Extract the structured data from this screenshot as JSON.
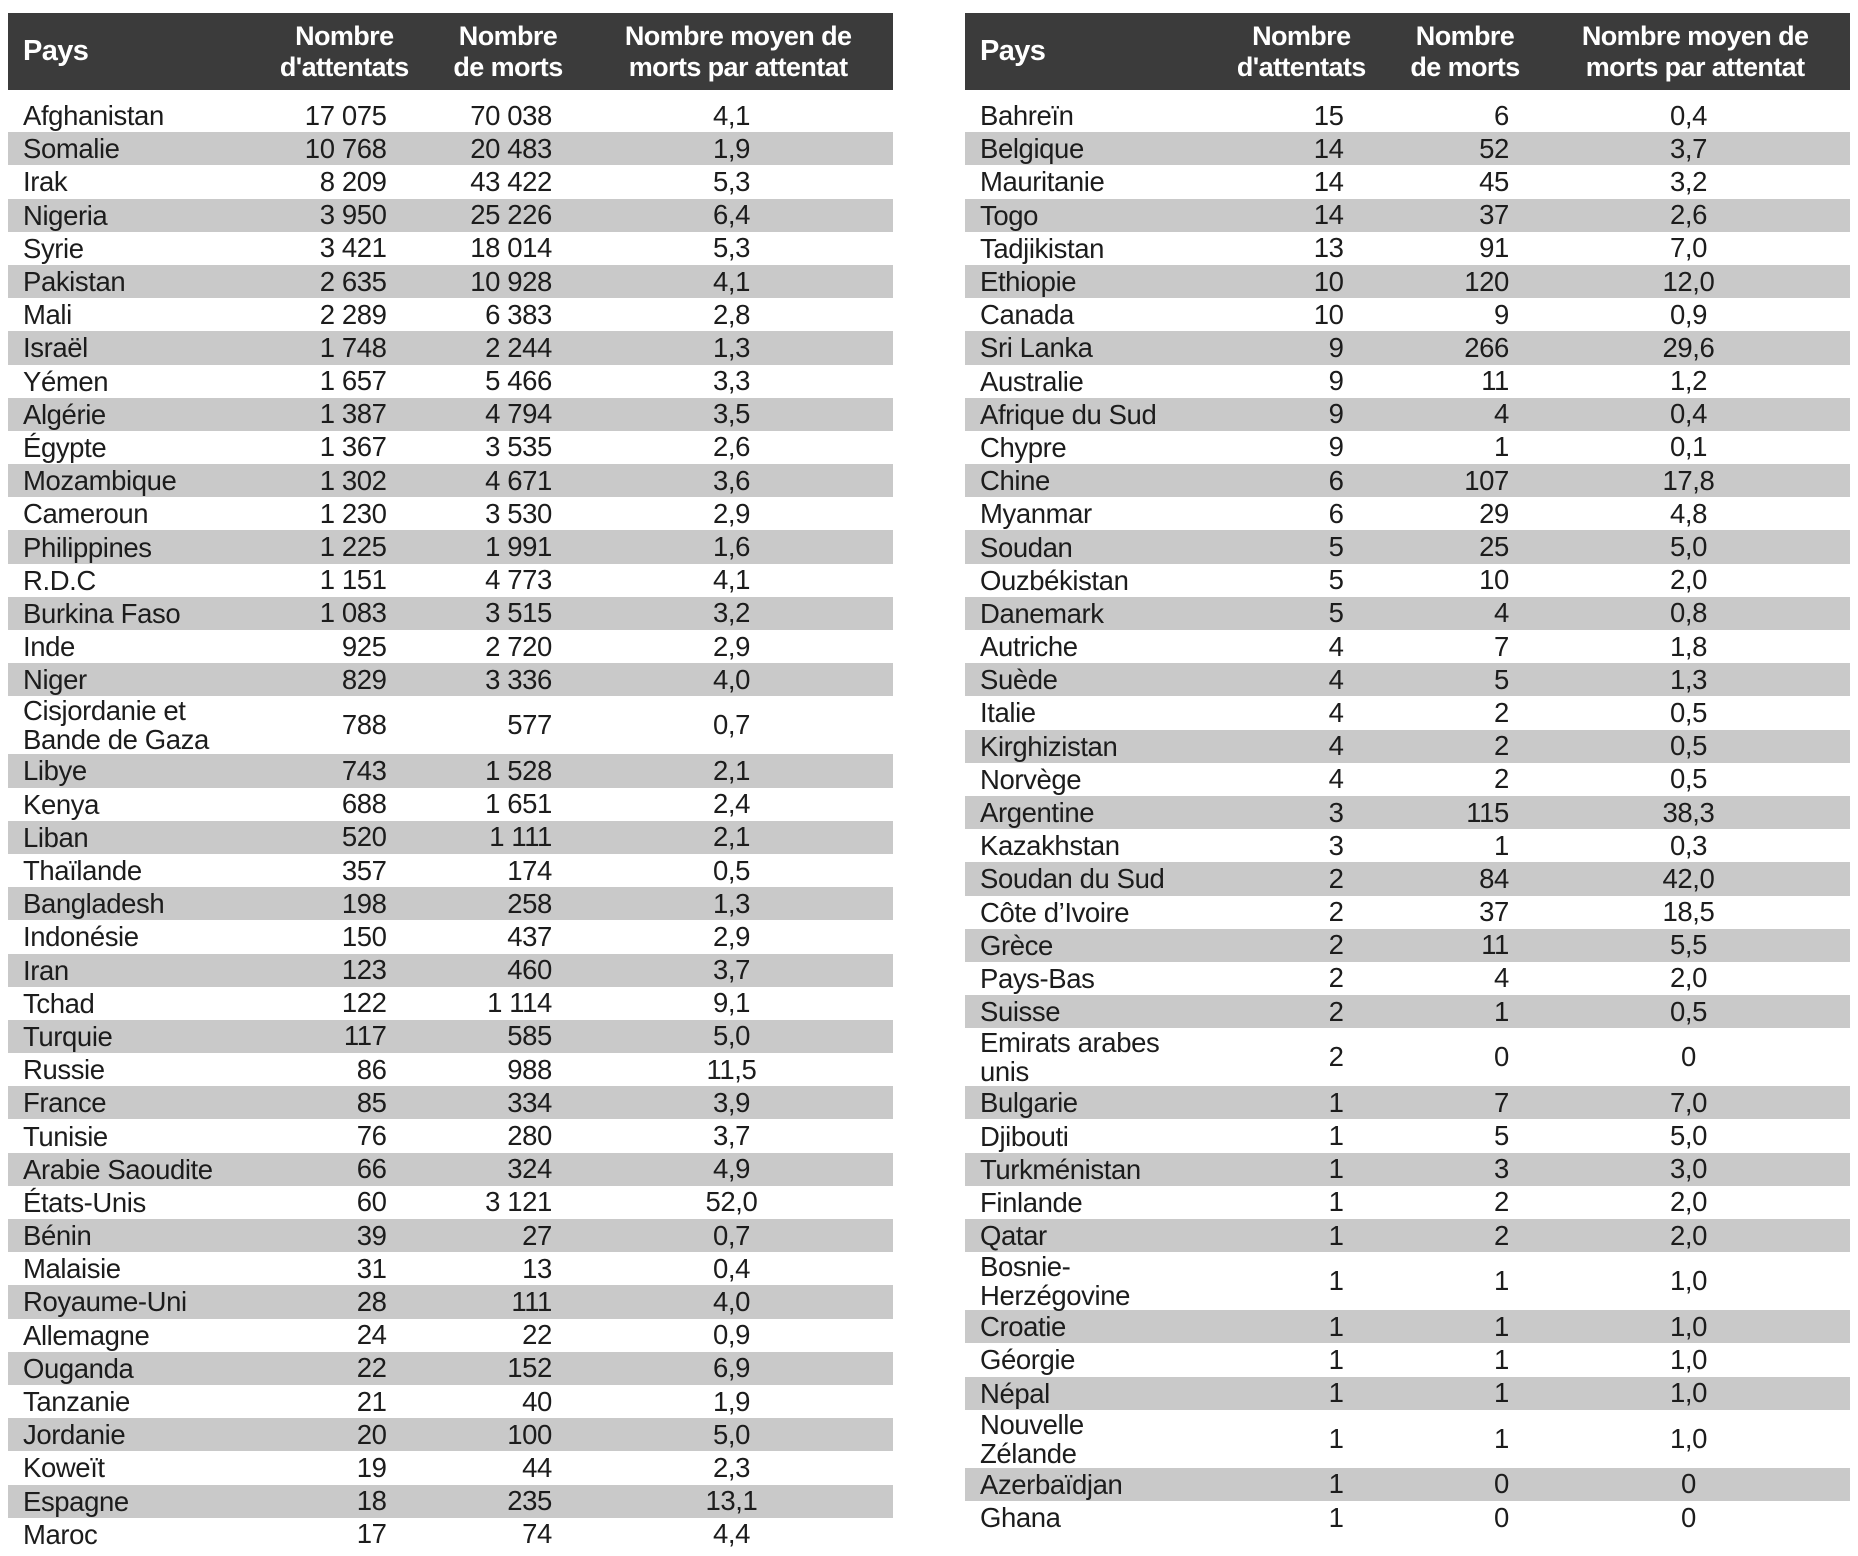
{
  "colors": {
    "header_background": "#3b3b3b",
    "header_text": "#ffffff",
    "row_stripe": "#c9c9c9",
    "body_text": "#1c1c1c"
  },
  "chart_data": [
    {
      "type": "table",
      "position": "left",
      "columns": [
        "Pays",
        "Nombre d'attentats",
        "Nombre de morts",
        "Nombre moyen de morts par attentat"
      ],
      "header_lines": {
        "country": "Pays",
        "attacks": [
          "Nombre",
          "d'attentats"
        ],
        "deaths": [
          "Nombre",
          "de morts"
        ],
        "avg": [
          "Nombre moyen de",
          "morts par attentat"
        ]
      },
      "rows": [
        [
          "Afghanistan",
          "17 075",
          "70 038",
          "4,1"
        ],
        [
          "Somalie",
          "10 768",
          "20 483",
          "1,9"
        ],
        [
          "Irak",
          "8 209",
          "43 422",
          "5,3"
        ],
        [
          "Nigeria",
          "3 950",
          "25 226",
          "6,4"
        ],
        [
          "Syrie",
          "3 421",
          "18 014",
          "5,3"
        ],
        [
          "Pakistan",
          "2 635",
          "10 928",
          "4,1"
        ],
        [
          "Mali",
          "2 289",
          "6 383",
          "2,8"
        ],
        [
          "Israël",
          "1 748",
          "2 244",
          "1,3"
        ],
        [
          "Yémen",
          "1 657",
          "5 466",
          "3,3"
        ],
        [
          "Algérie",
          "1 387",
          "4 794",
          "3,5"
        ],
        [
          "Égypte",
          "1 367",
          "3 535",
          "2,6"
        ],
        [
          "Mozambique",
          "1 302",
          "4 671",
          "3,6"
        ],
        [
          "Cameroun",
          "1 230",
          "3 530",
          "2,9"
        ],
        [
          "Philippines",
          "1 225",
          "1 991",
          "1,6"
        ],
        [
          "R.D.C",
          "1 151",
          "4 773",
          "4,1"
        ],
        [
          "Burkina Faso",
          "1 083",
          "3 515",
          "3,2"
        ],
        [
          "Inde",
          "925",
          "2 720",
          "2,9"
        ],
        [
          "Niger",
          "829",
          "3 336",
          "4,0"
        ],
        [
          "Cisjordanie et\nBande de Gaza",
          "788",
          "577",
          "0,7"
        ],
        [
          "Libye",
          "743",
          "1 528",
          "2,1"
        ],
        [
          "Kenya",
          "688",
          "1 651",
          "2,4"
        ],
        [
          "Liban",
          "520",
          "1 111",
          "2,1"
        ],
        [
          "Thaïlande",
          "357",
          "174",
          "0,5"
        ],
        [
          "Bangladesh",
          "198",
          "258",
          "1,3"
        ],
        [
          "Indonésie",
          "150",
          "437",
          "2,9"
        ],
        [
          "Iran",
          "123",
          "460",
          "3,7"
        ],
        [
          "Tchad",
          "122",
          "1 114",
          "9,1"
        ],
        [
          "Turquie",
          "117",
          "585",
          "5,0"
        ],
        [
          "Russie",
          "86",
          "988",
          "11,5"
        ],
        [
          "France",
          "85",
          "334",
          "3,9"
        ],
        [
          "Tunisie",
          "76",
          "280",
          "3,7"
        ],
        [
          "Arabie Saoudite",
          "66",
          "324",
          "4,9"
        ],
        [
          "États-Unis",
          "60",
          "3 121",
          "52,0"
        ],
        [
          "Bénin",
          "39",
          "27",
          "0,7"
        ],
        [
          "Malaisie",
          "31",
          "13",
          "0,4"
        ],
        [
          "Royaume-Uni",
          "28",
          "111",
          "4,0"
        ],
        [
          "Allemagne",
          "24",
          "22",
          "0,9"
        ],
        [
          "Ouganda",
          "22",
          "152",
          "6,9"
        ],
        [
          "Tanzanie",
          "21",
          "40",
          "1,9"
        ],
        [
          "Jordanie",
          "20",
          "100",
          "5,0"
        ],
        [
          "Koweït",
          "19",
          "44",
          "2,3"
        ],
        [
          "Espagne",
          "18",
          "235",
          "13,1"
        ],
        [
          "Maroc",
          "17",
          "74",
          "4,4"
        ]
      ]
    },
    {
      "type": "table",
      "position": "right",
      "columns": [
        "Pays",
        "Nombre d'attentats",
        "Nombre de morts",
        "Nombre moyen de morts par attentat"
      ],
      "header_lines": {
        "country": "Pays",
        "attacks": [
          "Nombre",
          "d'attentats"
        ],
        "deaths": [
          "Nombre",
          "de morts"
        ],
        "avg": [
          "Nombre moyen de",
          "morts par attentat"
        ]
      },
      "rows": [
        [
          "Bahreïn",
          "15",
          "6",
          "0,4"
        ],
        [
          "Belgique",
          "14",
          "52",
          "3,7"
        ],
        [
          "Mauritanie",
          "14",
          "45",
          "3,2"
        ],
        [
          "Togo",
          "14",
          "37",
          "2,6"
        ],
        [
          "Tadjikistan",
          "13",
          "91",
          "7,0"
        ],
        [
          "Ethiopie",
          "10",
          "120",
          "12,0"
        ],
        [
          "Canada",
          "10",
          "9",
          "0,9"
        ],
        [
          "Sri Lanka",
          "9",
          "266",
          "29,6"
        ],
        [
          "Australie",
          "9",
          "11",
          "1,2"
        ],
        [
          "Afrique du Sud",
          "9",
          "4",
          "0,4"
        ],
        [
          "Chypre",
          "9",
          "1",
          "0,1"
        ],
        [
          "Chine",
          "6",
          "107",
          "17,8"
        ],
        [
          "Myanmar",
          "6",
          "29",
          "4,8"
        ],
        [
          "Soudan",
          "5",
          "25",
          "5,0"
        ],
        [
          "Ouzbékistan",
          "5",
          "10",
          "2,0"
        ],
        [
          "Danemark",
          "5",
          "4",
          "0,8"
        ],
        [
          "Autriche",
          "4",
          "7",
          "1,8"
        ],
        [
          "Suède",
          "4",
          "5",
          "1,3"
        ],
        [
          "Italie",
          "4",
          "2",
          "0,5"
        ],
        [
          "Kirghizistan",
          "4",
          "2",
          "0,5"
        ],
        [
          "Norvège",
          "4",
          "2",
          "0,5"
        ],
        [
          "Argentine",
          "3",
          "115",
          "38,3"
        ],
        [
          "Kazakhstan",
          "3",
          "1",
          "0,3"
        ],
        [
          "Soudan du Sud",
          "2",
          "84",
          "42,0"
        ],
        [
          "Côte d’Ivoire",
          "2",
          "37",
          "18,5"
        ],
        [
          "Grèce",
          "2",
          "11",
          "5,5"
        ],
        [
          "Pays-Bas",
          "2",
          "4",
          "2,0"
        ],
        [
          "Suisse",
          "2",
          "1",
          "0,5"
        ],
        [
          "Emirats arabes\nunis",
          "2",
          "0",
          "0"
        ],
        [
          "Bulgarie",
          "1",
          "7",
          "7,0"
        ],
        [
          "Djibouti",
          "1",
          "5",
          "5,0"
        ],
        [
          "Turkménistan",
          "1",
          "3",
          "3,0"
        ],
        [
          "Finlande",
          "1",
          "2",
          "2,0"
        ],
        [
          "Qatar",
          "1",
          "2",
          "2,0"
        ],
        [
          "Bosnie-\nHerzégovine",
          "1",
          "1",
          "1,0"
        ],
        [
          "Croatie",
          "1",
          "1",
          "1,0"
        ],
        [
          "Géorgie",
          "1",
          "1",
          "1,0"
        ],
        [
          "Népal",
          "1",
          "1",
          "1,0"
        ],
        [
          "Nouvelle\nZélande",
          "1",
          "1",
          "1,0"
        ],
        [
          "Azerbaïdjan",
          "1",
          "0",
          "0"
        ],
        [
          "Ghana",
          "1",
          "0",
          "0"
        ]
      ]
    }
  ]
}
